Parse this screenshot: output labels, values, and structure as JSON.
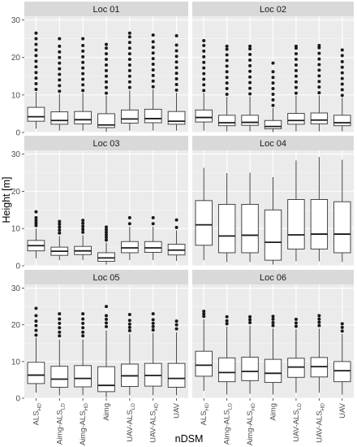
{
  "chart_data": {
    "type": "boxplot",
    "xlabel": "nDSM",
    "ylabel": "Height [m]",
    "ylim": [
      0,
      31
    ],
    "yticks": [
      0,
      10,
      20,
      30
    ],
    "categories": [
      {
        "base": "ALS",
        "sub": "HD"
      },
      {
        "base": "Aimg-ALS",
        "sub": "LD"
      },
      {
        "base": "Aimg-ALS",
        "sub": "HD"
      },
      {
        "base": "Aimg",
        "sub": ""
      },
      {
        "base": "UAV-ALS",
        "sub": "LD"
      },
      {
        "base": "UAV-ALS",
        "sub": "HD"
      },
      {
        "base": "UAV",
        "sub": ""
      }
    ],
    "panels": [
      {
        "title": "Loc 01",
        "boxes": [
          {
            "min": 1.0,
            "q1": 3.0,
            "median": 4.2,
            "q3": 6.7,
            "max": 10.8,
            "outliers": [
              11.5,
              13,
              14.5,
              16,
              17.5,
              19,
              20.5,
              22,
              23.5,
              25,
              26.5
            ]
          },
          {
            "min": 0.5,
            "q1": 2.2,
            "median": 3.2,
            "q3": 5.5,
            "max": 10.3,
            "outliers": [
              11,
              12.5,
              14,
              15.5,
              17,
              18.5,
              20,
              21.5,
              23,
              25
            ]
          },
          {
            "min": 0.5,
            "q1": 2.3,
            "median": 3.4,
            "q3": 5.6,
            "max": 10.5,
            "outliers": [
              11.2,
              12.7,
              14.2,
              15.7,
              17.2,
              18.7,
              20.2,
              21.7,
              23.2,
              25
            ]
          },
          {
            "min": 0.2,
            "q1": 1.3,
            "median": 2.0,
            "q3": 5.0,
            "max": 9.8,
            "outliers": [
              10.5,
              12,
              13.5,
              15,
              16.5,
              18,
              19.5,
              21,
              22.5,
              23.5
            ]
          },
          {
            "min": 0.5,
            "q1": 2.5,
            "median": 3.6,
            "q3": 6.0,
            "max": 11.2,
            "outliers": [
              12,
              13.5,
              15,
              16.5,
              18,
              19.5,
              21,
              22.5,
              24,
              25.5,
              26.5
            ]
          },
          {
            "min": 0.5,
            "q1": 2.6,
            "median": 3.7,
            "q3": 6.2,
            "max": 11.5,
            "outliers": [
              12.2,
              13.7,
              15.2,
              16.7,
              18.2,
              19.7,
              21.2,
              22.7,
              24.2,
              26
            ]
          },
          {
            "min": 0.5,
            "q1": 2.2,
            "median": 3.0,
            "q3": 5.6,
            "max": 10.6,
            "outliers": [
              11.3,
              12.8,
              14.3,
              15.8,
              17.3,
              18.8,
              20.3,
              21.8,
              23.3,
              25.8
            ]
          }
        ]
      },
      {
        "title": "Loc 02",
        "boxes": [
          {
            "min": 0.5,
            "q1": 2.8,
            "median": 4.0,
            "q3": 6.0,
            "max": 10.5,
            "outliers": [
              11.2,
              12.7,
              14.2,
              15.7,
              17.2,
              18.7,
              20.2,
              21.7,
              23.2,
              24.5
            ]
          },
          {
            "min": 0.3,
            "q1": 1.8,
            "median": 2.6,
            "q3": 4.6,
            "max": 9.5,
            "outliers": [
              10.2,
              11.7,
              13.2,
              14.7,
              16.2,
              17.7,
              19.2,
              20.7,
              22.2,
              23
            ]
          },
          {
            "min": 0.3,
            "q1": 1.9,
            "median": 2.7,
            "q3": 4.6,
            "max": 9.6,
            "outliers": [
              10.3,
              11.8,
              13.3,
              14.8,
              16.3,
              17.8,
              19.3,
              20.8,
              22.3,
              23
            ]
          },
          {
            "min": 0.1,
            "q1": 1.0,
            "median": 1.6,
            "q3": 3.2,
            "max": 6.5,
            "outliers": [
              7.2,
              8.7,
              10.2,
              11.7,
              13.2,
              14.7,
              16.2,
              18.5
            ]
          },
          {
            "min": 0.3,
            "q1": 2.2,
            "median": 3.2,
            "q3": 5.1,
            "max": 9.8,
            "outliers": [
              10.5,
              12,
              13.5,
              15,
              16.5,
              18,
              19.5,
              21,
              22.5,
              23
            ]
          },
          {
            "min": 0.3,
            "q1": 2.3,
            "median": 3.3,
            "q3": 5.2,
            "max": 9.9,
            "outliers": [
              10.6,
              12.1,
              13.6,
              15.1,
              16.6,
              18.1,
              19.6,
              21.1,
              22.6,
              23.2
            ]
          },
          {
            "min": 0.3,
            "q1": 1.8,
            "median": 2.6,
            "q3": 4.6,
            "max": 9.2,
            "outliers": [
              9.9,
              11.4,
              12.9,
              14.4,
              15.9,
              17.4,
              18.9,
              20.5,
              22
            ]
          }
        ]
      },
      {
        "title": "Loc 03",
        "boxes": [
          {
            "min": 2.0,
            "q1": 4.0,
            "median": 5.4,
            "q3": 6.8,
            "max": 10.0,
            "outliers": [
              10.8,
              11.5,
              12.2,
              12.9,
              14.5
            ]
          },
          {
            "min": 1.5,
            "q1": 2.8,
            "median": 3.9,
            "q3": 5.0,
            "max": 8.0,
            "outliers": [
              8.8,
              9.6,
              10.4,
              11.2,
              11.9
            ]
          },
          {
            "min": 1.5,
            "q1": 3.0,
            "median": 4.0,
            "q3": 5.2,
            "max": 8.2,
            "outliers": [
              9.0,
              9.8,
              10.6,
              11.4,
              12.2
            ]
          },
          {
            "min": 0.3,
            "q1": 1.2,
            "median": 2.1,
            "q3": 3.5,
            "max": 6.2,
            "outliers": [
              6.9,
              7.6,
              8.3,
              9.0,
              9.7,
              10.4
            ]
          },
          {
            "min": 1.5,
            "q1": 3.5,
            "median": 4.8,
            "q3": 6.5,
            "max": 10.5,
            "outliers": [
              11.3,
              12.9
            ]
          },
          {
            "min": 1.5,
            "q1": 3.6,
            "median": 4.8,
            "q3": 6.5,
            "max": 10.5,
            "outliers": [
              11.3,
              12.9
            ]
          },
          {
            "min": 1.3,
            "q1": 2.9,
            "median": 4.2,
            "q3": 5.8,
            "max": 9.5,
            "outliers": [
              10.3,
              12.3
            ]
          }
        ]
      },
      {
        "title": "Loc 04",
        "boxes": [
          {
            "min": 1.5,
            "q1": 5.5,
            "median": 11.0,
            "q3": 17.5,
            "max": 26.3,
            "outliers": []
          },
          {
            "min": 1.0,
            "q1": 3.5,
            "median": 8.0,
            "q3": 16.5,
            "max": 24.9,
            "outliers": []
          },
          {
            "min": 1.0,
            "q1": 3.5,
            "median": 8.2,
            "q3": 16.5,
            "max": 25.0,
            "outliers": []
          },
          {
            "min": 0.3,
            "q1": 1.5,
            "median": 6.3,
            "q3": 15.0,
            "max": 23.8,
            "outliers": []
          },
          {
            "min": 1.2,
            "q1": 4.5,
            "median": 8.3,
            "q3": 17.8,
            "max": 28.3,
            "outliers": []
          },
          {
            "min": 1.2,
            "q1": 4.5,
            "median": 8.5,
            "q3": 17.8,
            "max": 29.2,
            "outliers": []
          },
          {
            "min": 1.0,
            "q1": 3.5,
            "median": 8.5,
            "q3": 17.2,
            "max": 28.5,
            "outliers": []
          }
        ]
      },
      {
        "title": "Loc 05",
        "boxes": [
          {
            "min": 1.5,
            "q1": 4.0,
            "median": 6.3,
            "q3": 9.8,
            "max": 16.5,
            "outliers": [
              17.2,
              18.5,
              19.8,
              21,
              22.5,
              24.5
            ]
          },
          {
            "min": 0.8,
            "q1": 3.0,
            "median": 5.2,
            "q3": 8.7,
            "max": 16.0,
            "outliers": [
              17,
              18,
              19.2,
              20.4,
              21.6,
              23
            ]
          },
          {
            "min": 0.8,
            "q1": 3.1,
            "median": 5.4,
            "q3": 8.9,
            "max": 16.0,
            "outliers": [
              17,
              18,
              19.2,
              20.4,
              21.6,
              23
            ]
          },
          {
            "min": 0.2,
            "q1": 1.8,
            "median": 3.5,
            "q3": 8.6,
            "max": 18.5,
            "outliers": [
              19.5,
              20.5,
              21.5,
              22.5,
              25
            ]
          },
          {
            "min": 0.8,
            "q1": 3.2,
            "median": 6.1,
            "q3": 9.3,
            "max": 17.5,
            "outliers": [
              18.4,
              19.3,
              20.2,
              21.2,
              22.8
            ]
          },
          {
            "min": 0.8,
            "q1": 3.3,
            "median": 6.2,
            "q3": 9.5,
            "max": 17.8,
            "outliers": [
              18.6,
              19.5,
              20.4,
              21.4,
              23
            ]
          },
          {
            "min": 0.8,
            "q1": 3.0,
            "median": 5.4,
            "q3": 9.5,
            "max": 18.0,
            "outliers": [
              18.9,
              20,
              21
            ]
          }
        ]
      },
      {
        "title": "Loc 06",
        "boxes": [
          {
            "min": 2.0,
            "q1": 6.0,
            "median": 9.0,
            "q3": 12.8,
            "max": 21.5,
            "outliers": [
              22.3,
              23.0,
              23.7
            ]
          },
          {
            "min": 1.0,
            "q1": 4.5,
            "median": 7.0,
            "q3": 11.0,
            "max": 19.5,
            "outliers": [
              20.3,
              21.1,
              22.2
            ]
          },
          {
            "min": 1.2,
            "q1": 4.8,
            "median": 7.3,
            "q3": 11.2,
            "max": 19.8,
            "outliers": [
              20.6,
              21.4,
              22.2
            ]
          },
          {
            "min": 1.0,
            "q1": 4.3,
            "median": 6.8,
            "q3": 10.6,
            "max": 19.0,
            "outliers": [
              19.8,
              20.6,
              21.5,
              22.3
            ]
          },
          {
            "min": 1.5,
            "q1": 5.7,
            "median": 8.5,
            "q3": 10.9,
            "max": 18.8,
            "outliers": [
              19.6,
              20.5,
              21.5
            ]
          },
          {
            "min": 1.5,
            "q1": 5.8,
            "median": 8.6,
            "q3": 11.1,
            "max": 19.0,
            "outliers": [
              19.8,
              20.7,
              21.6,
              22.5
            ]
          },
          {
            "min": 1.0,
            "q1": 4.5,
            "median": 7.5,
            "q3": 10.0,
            "max": 17.5,
            "outliers": [
              18.3,
              19.3,
              20.3
            ]
          }
        ]
      }
    ]
  }
}
